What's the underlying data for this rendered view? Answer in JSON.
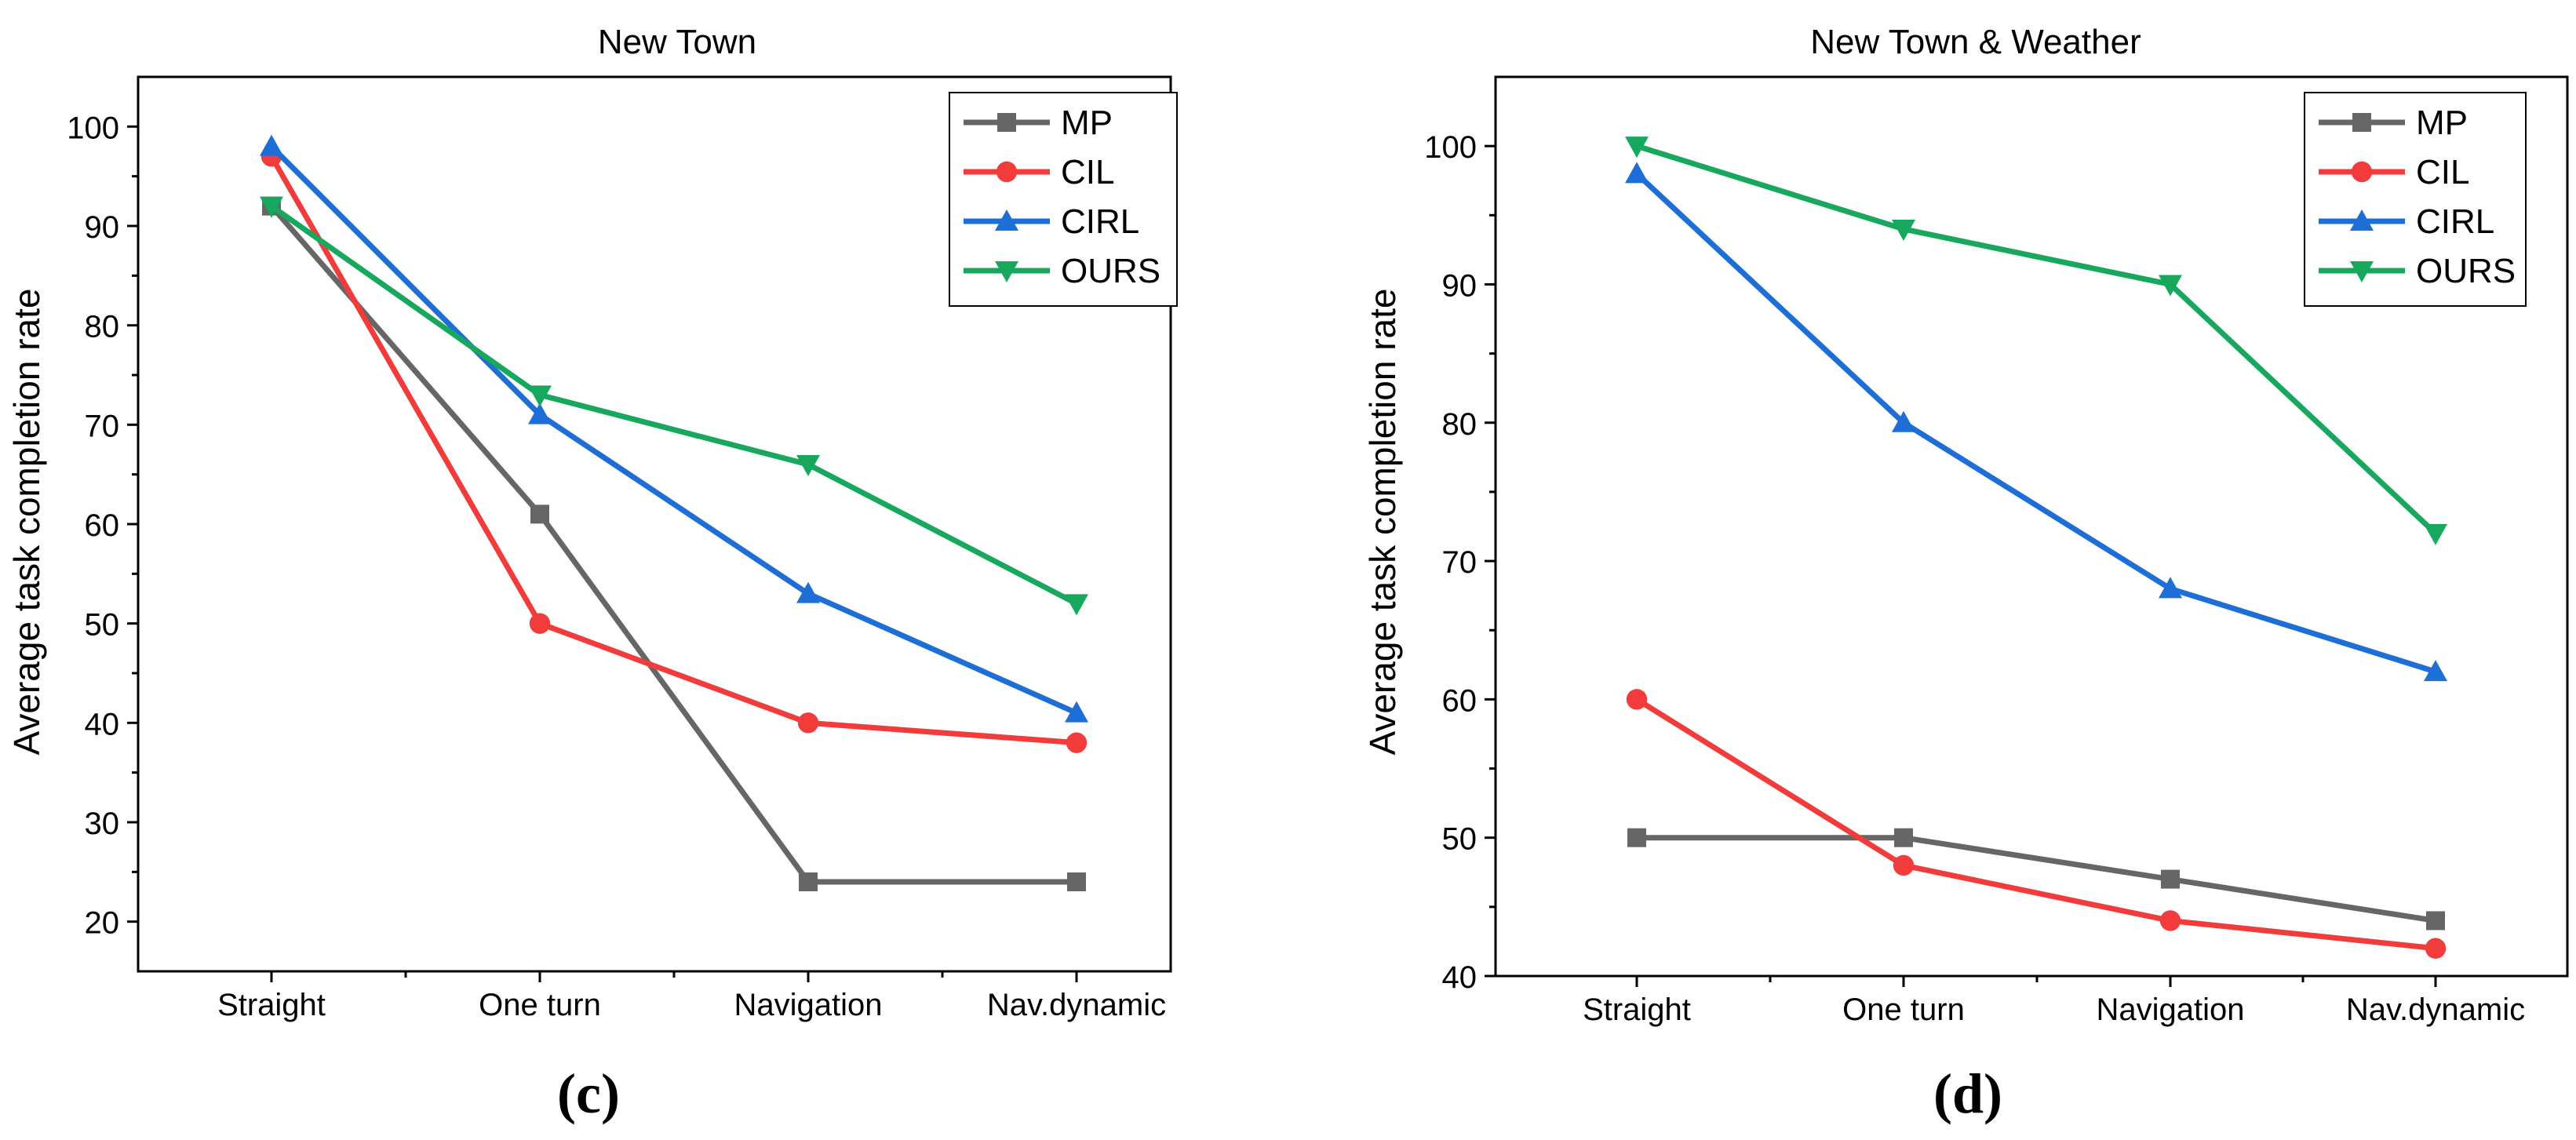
{
  "chart_data": [
    {
      "type": "line",
      "title": "New Town",
      "panel_label": "(c)",
      "xlabel": "",
      "ylabel": "Average task completion rate",
      "categories": [
        "Straight",
        "One turn",
        "Navigation",
        "Nav.dynamic"
      ],
      "ylim": [
        15,
        105
      ],
      "yticks": [
        20,
        30,
        40,
        50,
        60,
        70,
        80,
        90,
        100
      ],
      "grid": false,
      "legend_position": "top-right",
      "series": [
        {
          "name": "MP",
          "values": [
            92,
            61,
            24,
            24
          ],
          "color": "#666666",
          "marker": "square"
        },
        {
          "name": "CIL",
          "values": [
            97,
            50,
            40,
            38
          ],
          "color": "#f23b3b",
          "marker": "circle"
        },
        {
          "name": "CIRL",
          "values": [
            98,
            71,
            53,
            41
          ],
          "color": "#1e6ed8",
          "marker": "triangle-up"
        },
        {
          "name": "OURS",
          "values": [
            92,
            73,
            66,
            52
          ],
          "color": "#17a85e",
          "marker": "triangle-down"
        }
      ]
    },
    {
      "type": "line",
      "title": "New Town & Weather",
      "panel_label": "(d)",
      "xlabel": "",
      "ylabel": "Average task completion rate",
      "categories": [
        "Straight",
        "One turn",
        "Navigation",
        "Nav.dynamic"
      ],
      "ylim": [
        40,
        105
      ],
      "yticks": [
        40,
        50,
        60,
        70,
        80,
        90,
        100
      ],
      "grid": false,
      "legend_position": "top-right",
      "series": [
        {
          "name": "MP",
          "values": [
            50,
            50,
            47,
            44
          ],
          "color": "#666666",
          "marker": "square"
        },
        {
          "name": "CIL",
          "values": [
            60,
            48,
            44,
            42
          ],
          "color": "#f23b3b",
          "marker": "circle"
        },
        {
          "name": "CIRL",
          "values": [
            98,
            80,
            68,
            62
          ],
          "color": "#1e6ed8",
          "marker": "triangle-up"
        },
        {
          "name": "OURS",
          "values": [
            100,
            94,
            90,
            72
          ],
          "color": "#17a85e",
          "marker": "triangle-down"
        }
      ]
    }
  ]
}
